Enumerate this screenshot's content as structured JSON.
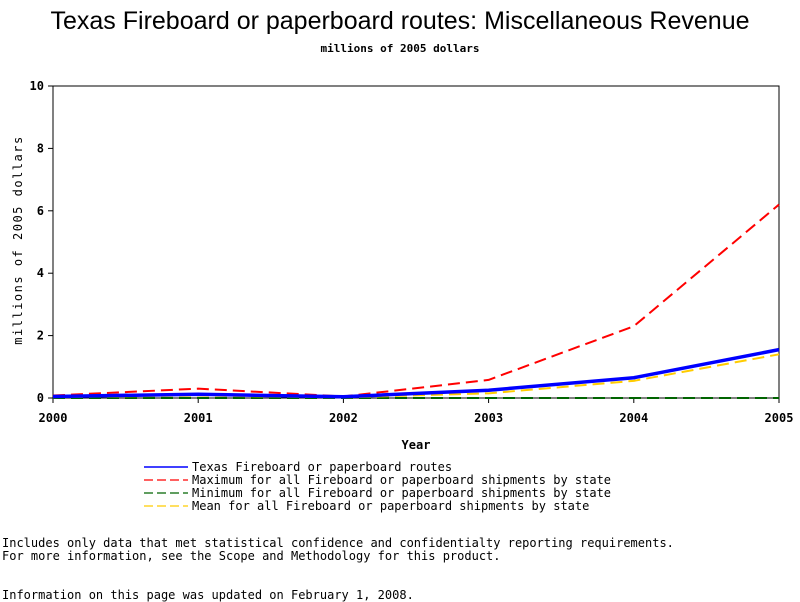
{
  "title": "Texas Fireboard or paperboard routes: Miscellaneous Revenue",
  "subtitle": "millions of 2005 dollars",
  "notes": {
    "line1": "Includes only data that met statistical confidence and confidentialty reporting requirements.",
    "line2": "For more information, see the Scope and Methodology for this product.",
    "updated": "Information on this page was updated on February 1, 2008."
  },
  "chart_data": {
    "type": "line",
    "title": "Texas Fireboard or paperboard routes: Miscellaneous Revenue",
    "subtitle": "millions of 2005 dollars",
    "xlabel": "Year",
    "ylabel": "millions of 2005 dollars",
    "x": [
      2000,
      2001,
      2002,
      2003,
      2004,
      2005
    ],
    "xlim": [
      2000,
      2005
    ],
    "ylim": [
      0,
      10
    ],
    "yticks": [
      0,
      2,
      4,
      6,
      8,
      10
    ],
    "grid": false,
    "legend_position": "bottom",
    "series": [
      {
        "name": "Texas Fireboard or paperboard routes",
        "values": [
          0.05,
          0.12,
          0.04,
          0.25,
          0.65,
          1.55
        ],
        "color": "#0000ff",
        "style": "solid"
      },
      {
        "name": "Maximum for all Fireboard or paperboard shipments by state",
        "values": [
          0.08,
          0.3,
          0.05,
          0.58,
          2.3,
          6.2
        ],
        "color": "#ff0000",
        "style": "dashed"
      },
      {
        "name": "Minimum for all Fireboard or paperboard shipments by state",
        "values": [
          0.0,
          0.0,
          0.0,
          0.0,
          0.0,
          0.0
        ],
        "color": "#006400",
        "style": "dashed"
      },
      {
        "name": "Mean for all Fireboard or paperboard shipments by state",
        "values": [
          0.03,
          0.08,
          0.02,
          0.15,
          0.55,
          1.4
        ],
        "color": "#ffcc00",
        "style": "dashed"
      }
    ]
  }
}
